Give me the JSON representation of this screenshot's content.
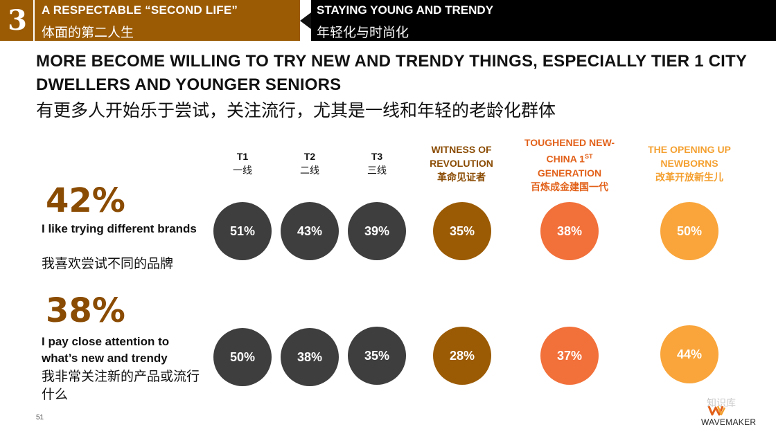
{
  "header": {
    "section_number": "3",
    "left_en": "A RESPECTABLE “SECOND LIFE”",
    "left_cn": "体面的第二人生",
    "right_en": "STAYING YOUNG AND TRENDY",
    "right_cn": "年轻化与时尚化"
  },
  "title": {
    "en": "MORE BECOME WILLING TO TRY NEW AND TRENDY THINGS, ESPECIALLY TIER 1 CITY DWELLERS AND YOUNGER SENIORS",
    "cn": "有更多人开始乐于尝试，关注流行，尤其是一线和年轻的老龄化群体"
  },
  "columns": [
    {
      "en": "T1",
      "cn": "一线",
      "color": "#111111"
    },
    {
      "en": "T2",
      "cn": "二线",
      "color": "#111111"
    },
    {
      "en": "T3",
      "cn": "三线",
      "color": "#111111"
    },
    {
      "en": "WITNESS OF REVOLUTION",
      "cn": "革命见证者",
      "color": "#8a4b02"
    },
    {
      "en_line1": "TOUGHENED NEW-",
      "en_line2": "CHINA 1",
      "en_sup": "ST",
      "en_line3": "GENERATION",
      "cn": "百炼成金建国一代",
      "color": "#e2611a"
    },
    {
      "en": "THE OPENING UP NEWBORNS",
      "cn": "改革开放新生儿",
      "color": "#f4a030"
    }
  ],
  "rows": [
    {
      "big_pct": "42%",
      "label_en": "I like trying different brands",
      "label_cn": "我喜欢尝试不同的品牌",
      "values": [
        "51%",
        "43%",
        "39%",
        "35%",
        "38%",
        "50%"
      ]
    },
    {
      "big_pct": "38%",
      "label_en": "I pay close attention to what’s new and trendy",
      "label_cn": "我非常关注新的产品或流行什么",
      "values": [
        "50%",
        "38%",
        "35%",
        "28%",
        "37%",
        "44%"
      ]
    }
  ],
  "footer": {
    "page": "51",
    "brand": "WAVEMAKER",
    "watermark": "知识库"
  },
  "colors": {
    "brown": "#9b5b05",
    "dark": "#3e3e3e",
    "orange": "#f2703a",
    "light_orange": "#f9a53b"
  }
}
